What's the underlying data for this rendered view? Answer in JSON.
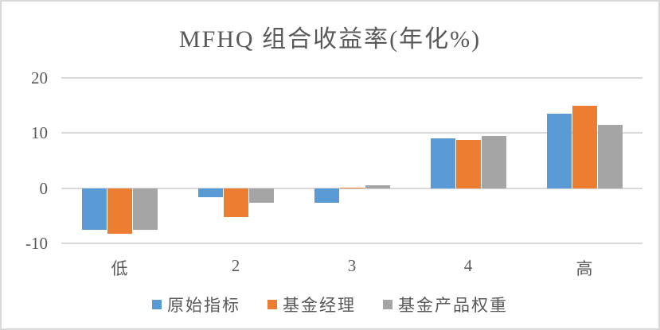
{
  "page": {
    "background_color": "#FFFFFF",
    "border_color": "#D9D9D9",
    "text_color": "#595959"
  },
  "chart_data": {
    "type": "bar",
    "title": "MFHQ 组合收益率(年化%)",
    "categories": [
      "低",
      "2",
      "3",
      "4",
      "高"
    ],
    "series": [
      {
        "name": "原始指标",
        "color": "#5B9BD5",
        "values": [
          -7.5,
          -1.7,
          -2.7,
          9.0,
          13.5
        ]
      },
      {
        "name": "基金经理",
        "color": "#ED7D31",
        "values": [
          -8.3,
          -5.2,
          0.1,
          8.7,
          15.0
        ]
      },
      {
        "name": "基金产品权重",
        "color": "#A5A5A5",
        "values": [
          -7.5,
          -2.6,
          0.6,
          9.5,
          11.5
        ]
      }
    ],
    "xlabel": "",
    "ylabel": "",
    "ylim": [
      -10,
      20
    ],
    "yticks": [
      20,
      10,
      0,
      -10
    ],
    "grid": true,
    "gridline_color": "#D9D9D9",
    "legend_position": "bottom"
  }
}
